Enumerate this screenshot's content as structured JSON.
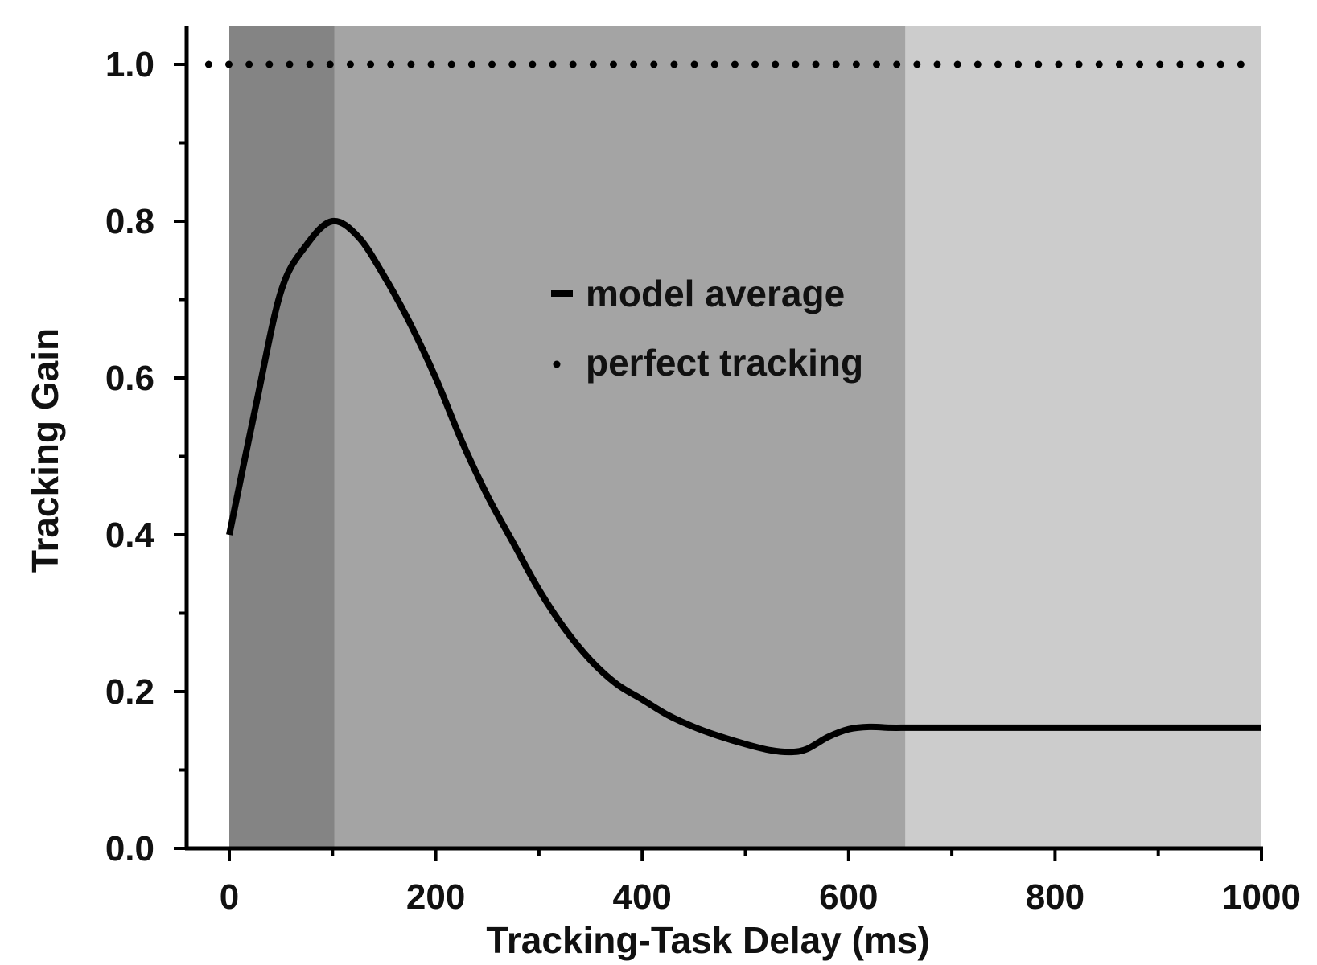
{
  "chart_data": {
    "type": "line",
    "title": "",
    "xlabel": "Tracking-Task Delay (ms)",
    "ylabel": "Tracking Gain",
    "xlim": [
      -40,
      1000
    ],
    "ylim": [
      0.0,
      1.05
    ],
    "xticks": [
      0,
      200,
      400,
      600,
      800,
      1000
    ],
    "xtick_labels": [
      "0",
      "200",
      "400",
      "600",
      "800",
      "1000"
    ],
    "xminor_step": 100,
    "yticks": [
      0.0,
      0.2,
      0.4,
      0.6,
      0.8,
      1.0
    ],
    "ytick_labels": [
      "0.0",
      "0.2",
      "0.4",
      "0.6",
      "0.8",
      "1.0"
    ],
    "yminor_step": 0.1,
    "grid": false,
    "legend_position": "center",
    "shaded_regions": [
      {
        "x_start": 0,
        "x_end": 102,
        "color": "#848484"
      },
      {
        "x_start": 102,
        "x_end": 655,
        "color": "#a4a4a4"
      },
      {
        "x_start": 655,
        "x_end": 1000,
        "color": "#cccccc"
      }
    ],
    "series": [
      {
        "name": "model average",
        "style": "solid",
        "color": "#000000",
        "x": [
          0,
          25,
          50,
          75,
          100,
          125,
          150,
          175,
          200,
          225,
          250,
          275,
          300,
          325,
          350,
          375,
          400,
          425,
          450,
          475,
          500,
          525,
          545,
          560,
          580,
          600,
          620,
          640,
          660,
          700,
          800,
          900,
          1000
        ],
        "y": [
          0.4,
          0.56,
          0.71,
          0.77,
          0.8,
          0.78,
          0.73,
          0.67,
          0.6,
          0.52,
          0.45,
          0.39,
          0.33,
          0.28,
          0.24,
          0.21,
          0.19,
          0.17,
          0.155,
          0.143,
          0.133,
          0.125,
          0.123,
          0.127,
          0.142,
          0.152,
          0.155,
          0.154,
          0.154,
          0.154,
          0.154,
          0.154,
          0.154
        ]
      },
      {
        "name": "perfect tracking",
        "style": "dotted",
        "color": "#000000",
        "x": [
          -20,
          980
        ],
        "y": [
          1.0,
          1.0
        ]
      }
    ],
    "legend": [
      {
        "label": "model average",
        "marker": "line"
      },
      {
        "label": "perfect tracking",
        "marker": "dot"
      }
    ]
  }
}
